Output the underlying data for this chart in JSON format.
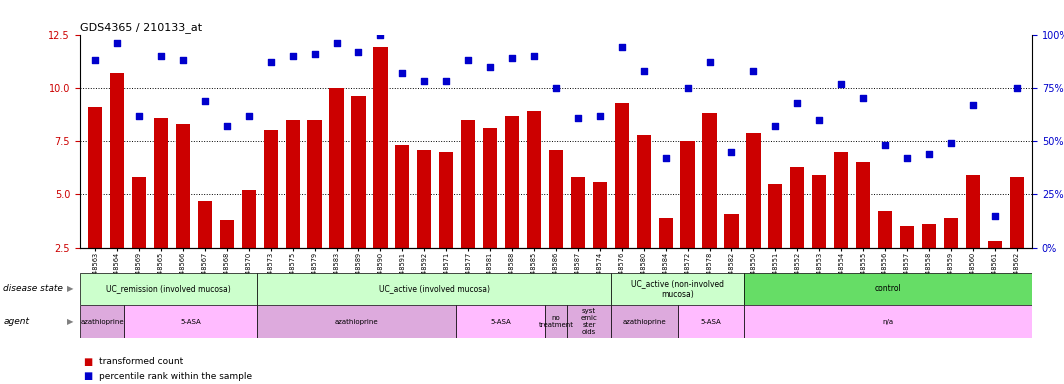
{
  "title": "GDS4365 / 210133_at",
  "samples": [
    "GSM948563",
    "GSM948564",
    "GSM948569",
    "GSM948565",
    "GSM948566",
    "GSM948567",
    "GSM948568",
    "GSM948570",
    "GSM948573",
    "GSM948575",
    "GSM948579",
    "GSM948583",
    "GSM948589",
    "GSM948590",
    "GSM948591",
    "GSM948592",
    "GSM948571",
    "GSM948577",
    "GSM948581",
    "GSM948588",
    "GSM948585",
    "GSM948586",
    "GSM948587",
    "GSM948574",
    "GSM948576",
    "GSM948580",
    "GSM948584",
    "GSM948572",
    "GSM948578",
    "GSM948582",
    "GSM948550",
    "GSM948551",
    "GSM948552",
    "GSM948553",
    "GSM948554",
    "GSM948555",
    "GSM948556",
    "GSM948557",
    "GSM948558",
    "GSM948559",
    "GSM948560",
    "GSM948561",
    "GSM948562"
  ],
  "bar_values": [
    9.1,
    10.7,
    5.8,
    8.6,
    8.3,
    4.7,
    3.8,
    5.2,
    8.0,
    8.5,
    8.5,
    10.0,
    9.6,
    11.9,
    7.3,
    7.1,
    7.0,
    8.5,
    8.1,
    8.7,
    8.9,
    7.1,
    5.8,
    5.6,
    9.3,
    7.8,
    3.9,
    7.5,
    8.8,
    4.1,
    7.9,
    5.5,
    6.3,
    5.9,
    7.0,
    6.5,
    4.2,
    3.5,
    3.6,
    3.9,
    5.9,
    2.8,
    5.8
  ],
  "percentile_values": [
    88,
    96,
    62,
    90,
    88,
    69,
    57,
    62,
    87,
    90,
    91,
    96,
    92,
    100,
    82,
    78,
    78,
    88,
    85,
    89,
    90,
    75,
    61,
    62,
    94,
    83,
    42,
    75,
    87,
    45,
    83,
    57,
    68,
    60,
    77,
    70,
    48,
    42,
    44,
    49,
    67,
    15,
    75
  ],
  "ylim_left": [
    2.5,
    12.5
  ],
  "ylim_right": [
    0,
    100
  ],
  "yticks_left": [
    2.5,
    5.0,
    7.5,
    10.0,
    12.5
  ],
  "yticks_right": [
    0,
    25,
    50,
    75,
    100
  ],
  "ytick_right_labels": [
    "0%",
    "25%",
    "50%",
    "75%",
    "100%"
  ],
  "dotted_lines": [
    5.0,
    7.5,
    10.0
  ],
  "bar_color": "#cc0000",
  "marker_color": "#0000cc",
  "disease_state_groups": [
    {
      "label": "UC_remission (involved mucosa)",
      "start": 0,
      "end": 8,
      "color": "#ccffcc"
    },
    {
      "label": "UC_active (involved mucosa)",
      "start": 8,
      "end": 24,
      "color": "#ccffcc"
    },
    {
      "label": "UC_active (non-involved\nmucosa)",
      "start": 24,
      "end": 30,
      "color": "#ccffcc"
    },
    {
      "label": "control",
      "start": 30,
      "end": 43,
      "color": "#66dd66"
    }
  ],
  "agent_groups": [
    {
      "label": "azathioprine",
      "start": 0,
      "end": 2,
      "color": "#ddaadd"
    },
    {
      "label": "5-ASA",
      "start": 2,
      "end": 8,
      "color": "#ffbbff"
    },
    {
      "label": "azathioprine",
      "start": 8,
      "end": 17,
      "color": "#ddaadd"
    },
    {
      "label": "5-ASA",
      "start": 17,
      "end": 21,
      "color": "#ffbbff"
    },
    {
      "label": "no\ntreatment",
      "start": 21,
      "end": 22,
      "color": "#ddaadd"
    },
    {
      "label": "syst\nemic\nster\noids",
      "start": 22,
      "end": 24,
      "color": "#ddaadd"
    },
    {
      "label": "azathioprine",
      "start": 24,
      "end": 27,
      "color": "#ddaadd"
    },
    {
      "label": "5-ASA",
      "start": 27,
      "end": 30,
      "color": "#ffbbff"
    },
    {
      "label": "n/a",
      "start": 30,
      "end": 43,
      "color": "#ffbbff"
    }
  ],
  "disease_label": "disease state",
  "agent_label": "agent",
  "legend_items": [
    {
      "label": "transformed count",
      "color": "#cc0000"
    },
    {
      "label": "percentile rank within the sample",
      "color": "#0000cc"
    }
  ]
}
